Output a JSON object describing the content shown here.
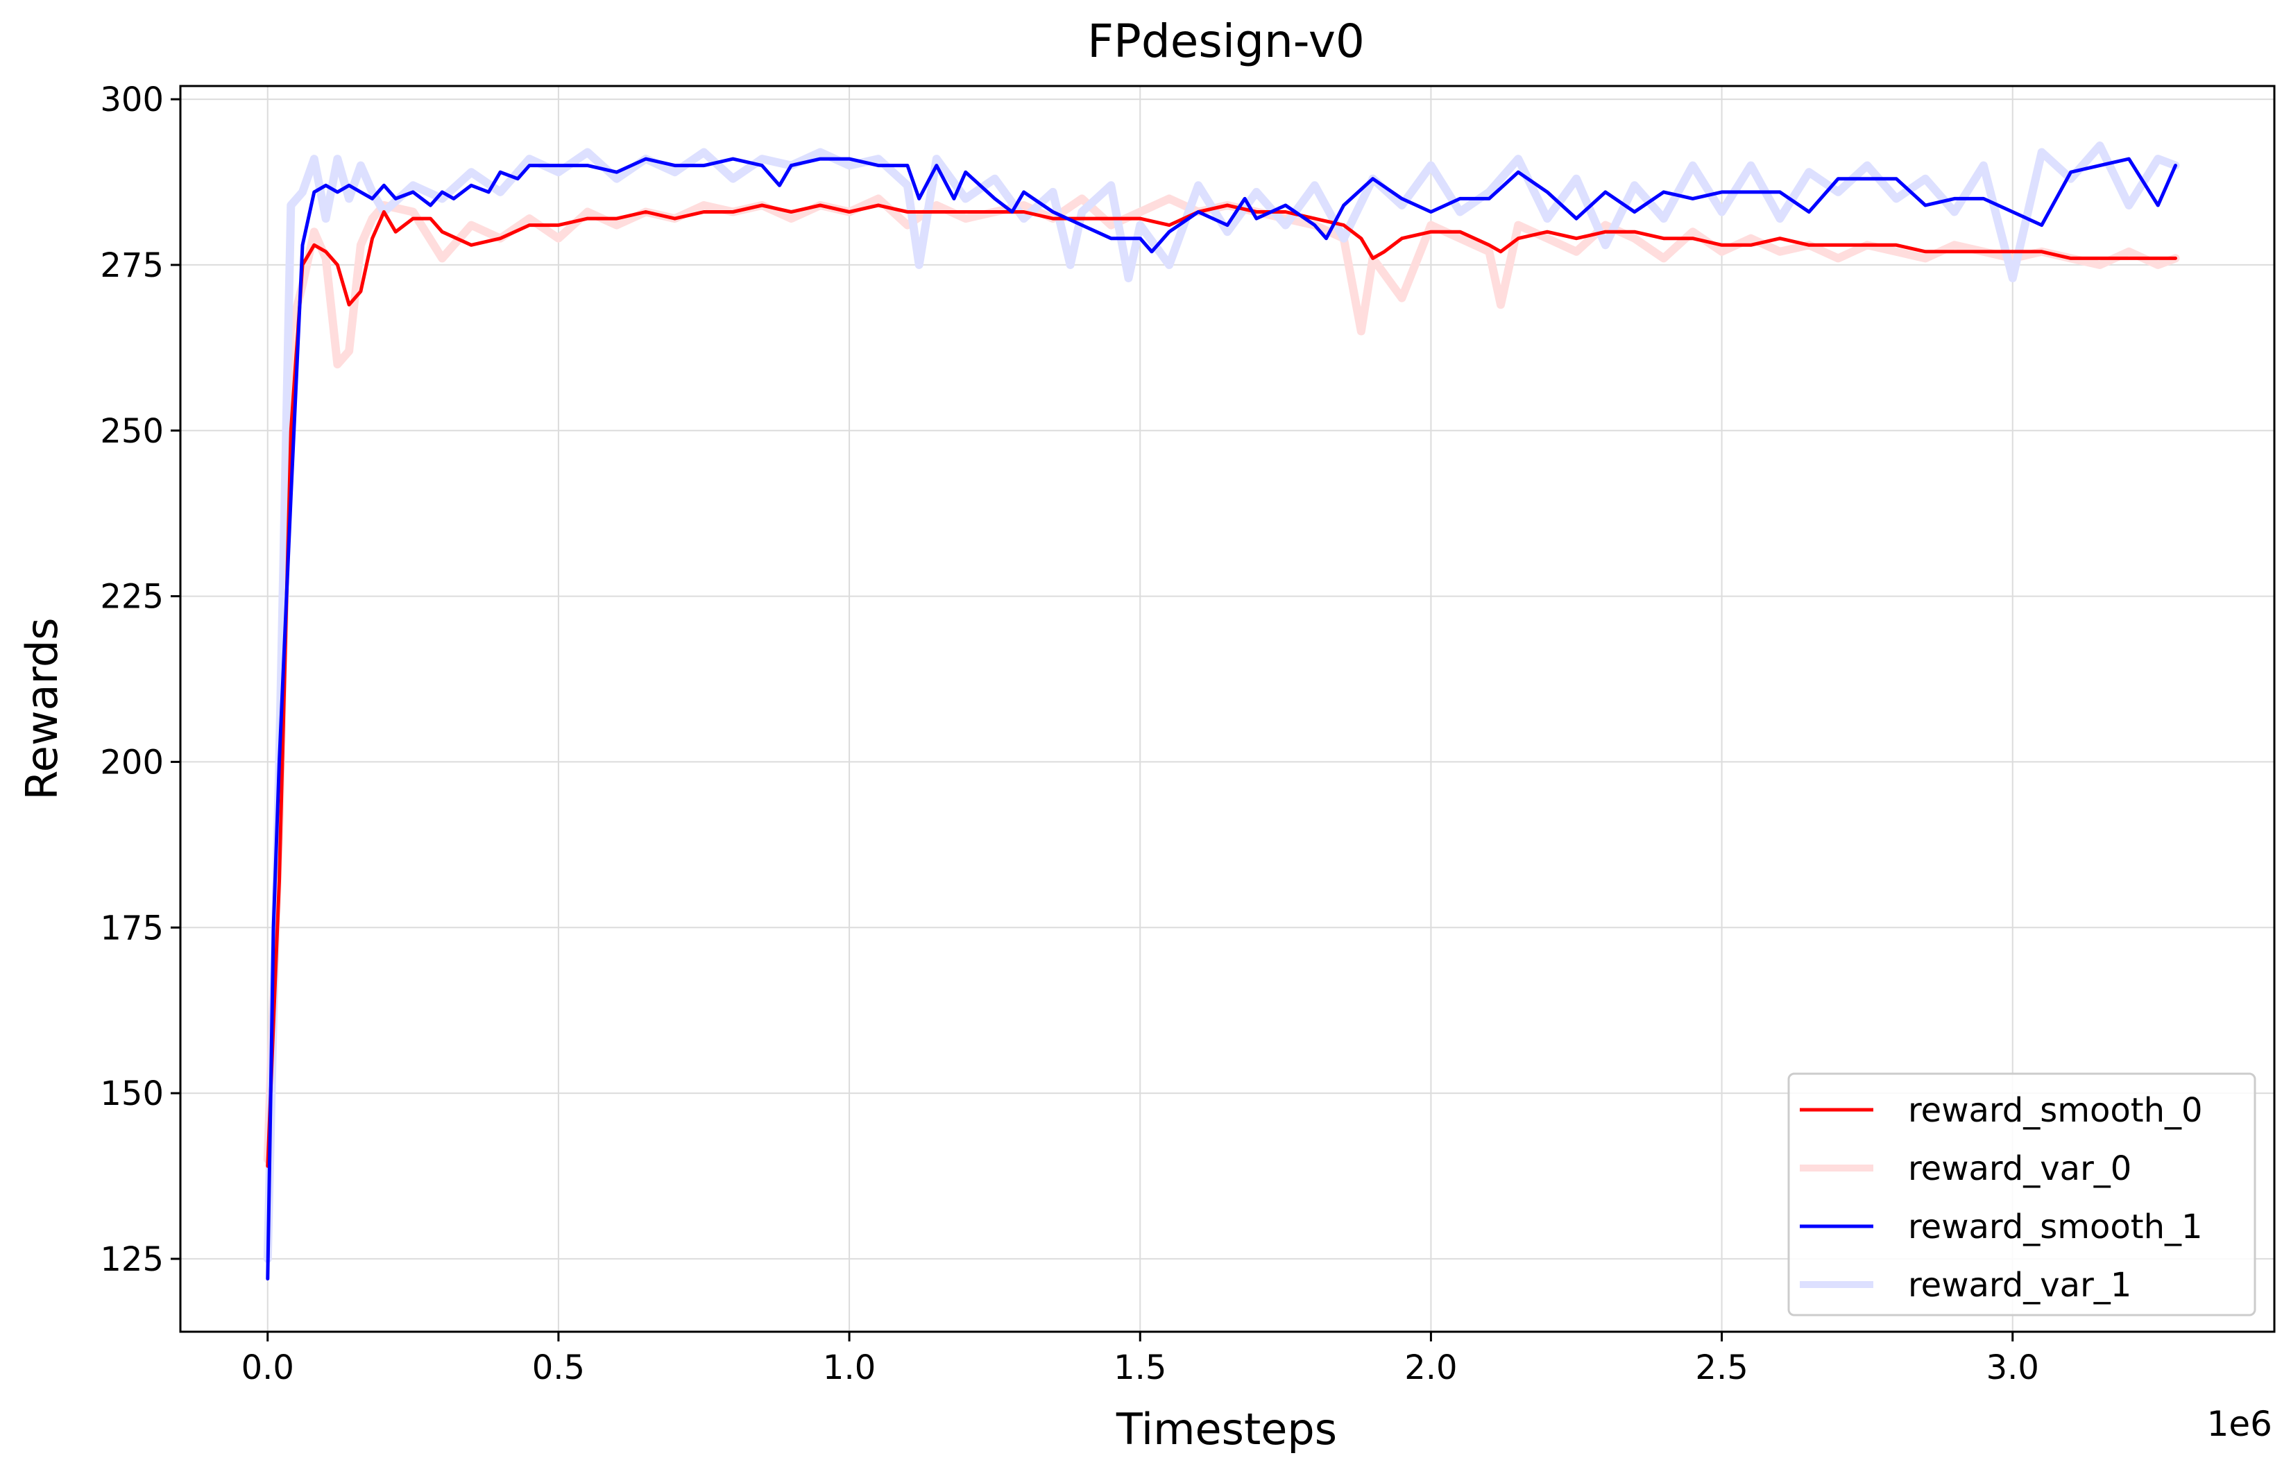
{
  "chart_data": {
    "type": "line",
    "title": "FPdesign-v0",
    "xlabel": "Timesteps",
    "ylabel": "Rewards",
    "x_offset_label": "1e6",
    "xlim": [
      -0.15,
      3.45
    ],
    "ylim": [
      114,
      302
    ],
    "x_ticks": [
      0.0,
      0.5,
      1.0,
      1.5,
      2.0,
      2.5,
      3.0
    ],
    "x_tick_labels": [
      "0.0",
      "0.5",
      "1.0",
      "1.5",
      "2.0",
      "2.5",
      "3.0"
    ],
    "y_ticks": [
      125,
      150,
      175,
      200,
      225,
      250,
      275,
      300
    ],
    "y_tick_labels": [
      "125",
      "150",
      "175",
      "200",
      "225",
      "250",
      "275",
      "300"
    ],
    "grid": true,
    "legend_position": "lower-right",
    "series": [
      {
        "name": "reward_var_0",
        "color": "#ffdddd",
        "style": "thick-faint",
        "x": [
          0.0,
          0.02,
          0.04,
          0.06,
          0.08,
          0.1,
          0.12,
          0.14,
          0.16,
          0.18,
          0.2,
          0.25,
          0.3,
          0.35,
          0.4,
          0.45,
          0.5,
          0.55,
          0.6,
          0.65,
          0.7,
          0.75,
          0.8,
          0.85,
          0.9,
          0.95,
          1.0,
          1.05,
          1.1,
          1.15,
          1.2,
          1.25,
          1.3,
          1.35,
          1.4,
          1.45,
          1.5,
          1.55,
          1.6,
          1.65,
          1.7,
          1.75,
          1.8,
          1.85,
          1.88,
          1.9,
          1.95,
          2.0,
          2.05,
          2.1,
          2.12,
          2.15,
          2.2,
          2.25,
          2.3,
          2.35,
          2.4,
          2.45,
          2.5,
          2.55,
          2.6,
          2.65,
          2.7,
          2.75,
          2.8,
          2.85,
          2.9,
          2.95,
          3.0,
          3.05,
          3.1,
          3.15,
          3.2,
          3.25,
          3.28
        ],
        "y": [
          140,
          190,
          265,
          272,
          280,
          276,
          260,
          262,
          278,
          282,
          284,
          283,
          276,
          281,
          279,
          282,
          279,
          283,
          281,
          283,
          282,
          284,
          283,
          284,
          282,
          284,
          283,
          285,
          281,
          284,
          282,
          283,
          284,
          282,
          285,
          281,
          283,
          285,
          283,
          284,
          283,
          282,
          281,
          279,
          265,
          276,
          270,
          281,
          279,
          277,
          269,
          281,
          279,
          277,
          281,
          279,
          276,
          280,
          277,
          279,
          277,
          278,
          276,
          278,
          277,
          276,
          278,
          277,
          276,
          277,
          276,
          275,
          277,
          275,
          276
        ]
      },
      {
        "name": "reward_var_1",
        "color": "#dde0ff",
        "style": "thick-faint",
        "x": [
          0.0,
          0.02,
          0.04,
          0.06,
          0.08,
          0.1,
          0.12,
          0.14,
          0.16,
          0.18,
          0.2,
          0.25,
          0.3,
          0.35,
          0.4,
          0.45,
          0.5,
          0.55,
          0.6,
          0.65,
          0.7,
          0.75,
          0.8,
          0.85,
          0.9,
          0.95,
          1.0,
          1.05,
          1.1,
          1.12,
          1.15,
          1.2,
          1.25,
          1.3,
          1.35,
          1.38,
          1.4,
          1.45,
          1.48,
          1.5,
          1.55,
          1.6,
          1.65,
          1.7,
          1.75,
          1.8,
          1.85,
          1.9,
          1.95,
          2.0,
          2.05,
          2.1,
          2.15,
          2.2,
          2.25,
          2.3,
          2.35,
          2.4,
          2.45,
          2.5,
          2.55,
          2.6,
          2.65,
          2.7,
          2.75,
          2.8,
          2.85,
          2.9,
          2.95,
          3.0,
          3.05,
          3.1,
          3.15,
          3.2,
          3.25,
          3.28
        ],
        "y": [
          125,
          200,
          284,
          286,
          291,
          282,
          291,
          285,
          290,
          286,
          283,
          287,
          285,
          289,
          286,
          291,
          289,
          292,
          288,
          291,
          289,
          292,
          288,
          291,
          290,
          292,
          290,
          291,
          287,
          275,
          291,
          285,
          288,
          282,
          286,
          275,
          283,
          287,
          273,
          281,
          275,
          287,
          280,
          286,
          281,
          287,
          279,
          288,
          284,
          290,
          283,
          286,
          291,
          282,
          288,
          278,
          287,
          282,
          290,
          283,
          290,
          282,
          289,
          286,
          290,
          285,
          288,
          283,
          290,
          273,
          292,
          288,
          293,
          284,
          291,
          290
        ]
      },
      {
        "name": "reward_smooth_0",
        "color": "#ff0000",
        "style": "solid",
        "x": [
          0.0,
          0.02,
          0.04,
          0.06,
          0.08,
          0.1,
          0.12,
          0.14,
          0.16,
          0.18,
          0.2,
          0.22,
          0.25,
          0.28,
          0.3,
          0.35,
          0.4,
          0.45,
          0.5,
          0.55,
          0.6,
          0.65,
          0.7,
          0.75,
          0.8,
          0.85,
          0.9,
          0.95,
          1.0,
          1.05,
          1.1,
          1.15,
          1.2,
          1.25,
          1.3,
          1.35,
          1.4,
          1.45,
          1.5,
          1.55,
          1.6,
          1.65,
          1.7,
          1.75,
          1.8,
          1.85,
          1.88,
          1.9,
          1.92,
          1.95,
          2.0,
          2.05,
          2.1,
          2.12,
          2.15,
          2.2,
          2.25,
          2.3,
          2.35,
          2.4,
          2.45,
          2.5,
          2.55,
          2.6,
          2.65,
          2.7,
          2.75,
          2.8,
          2.85,
          2.9,
          2.95,
          3.0,
          3.05,
          3.1,
          3.15,
          3.2,
          3.25,
          3.28
        ],
        "y": [
          139,
          182,
          250,
          275,
          278,
          277,
          275,
          269,
          271,
          279,
          283,
          280,
          282,
          282,
          280,
          278,
          279,
          281,
          281,
          282,
          282,
          283,
          282,
          283,
          283,
          284,
          283,
          284,
          283,
          284,
          283,
          283,
          283,
          283,
          283,
          282,
          282,
          282,
          282,
          281,
          283,
          284,
          283,
          283,
          282,
          281,
          279,
          276,
          277,
          279,
          280,
          280,
          278,
          277,
          279,
          280,
          279,
          280,
          280,
          279,
          279,
          278,
          278,
          279,
          278,
          278,
          278,
          278,
          277,
          277,
          277,
          277,
          277,
          276,
          276,
          276,
          276,
          276
        ]
      },
      {
        "name": "reward_smooth_1",
        "color": "#0000ff",
        "style": "solid",
        "x": [
          0.0,
          0.01,
          0.02,
          0.04,
          0.06,
          0.08,
          0.1,
          0.12,
          0.14,
          0.16,
          0.18,
          0.2,
          0.22,
          0.25,
          0.28,
          0.3,
          0.32,
          0.35,
          0.38,
          0.4,
          0.43,
          0.45,
          0.5,
          0.55,
          0.6,
          0.65,
          0.7,
          0.75,
          0.8,
          0.85,
          0.88,
          0.9,
          0.95,
          1.0,
          1.05,
          1.1,
          1.12,
          1.15,
          1.18,
          1.2,
          1.25,
          1.28,
          1.3,
          1.35,
          1.4,
          1.45,
          1.5,
          1.52,
          1.55,
          1.6,
          1.65,
          1.68,
          1.7,
          1.75,
          1.8,
          1.82,
          1.85,
          1.9,
          1.95,
          2.0,
          2.05,
          2.1,
          2.15,
          2.2,
          2.25,
          2.3,
          2.35,
          2.4,
          2.45,
          2.5,
          2.55,
          2.6,
          2.65,
          2.7,
          2.75,
          2.8,
          2.85,
          2.9,
          2.95,
          3.0,
          3.05,
          3.1,
          3.15,
          3.2,
          3.25,
          3.28
        ],
        "y": [
          122,
          175,
          200,
          240,
          278,
          286,
          287,
          286,
          287,
          286,
          285,
          287,
          285,
          286,
          284,
          286,
          285,
          287,
          286,
          289,
          288,
          290,
          290,
          290,
          289,
          291,
          290,
          290,
          291,
          290,
          287,
          290,
          291,
          291,
          290,
          290,
          285,
          290,
          285,
          289,
          285,
          283,
          286,
          283,
          281,
          279,
          279,
          277,
          280,
          283,
          281,
          285,
          282,
          284,
          281,
          279,
          284,
          288,
          285,
          283,
          285,
          285,
          289,
          286,
          282,
          286,
          283,
          286,
          285,
          286,
          286,
          286,
          283,
          288,
          288,
          288,
          284,
          285,
          285,
          283,
          281,
          289,
          290,
          291,
          284,
          290
        ]
      }
    ],
    "legend": [
      {
        "label": "reward_smooth_0",
        "color": "#ff0000",
        "faint": false
      },
      {
        "label": "reward_var_0",
        "color": "#ffdddd",
        "faint": true
      },
      {
        "label": "reward_smooth_1",
        "color": "#0000ff",
        "faint": false
      },
      {
        "label": "reward_var_1",
        "color": "#dde0ff",
        "faint": true
      }
    ]
  }
}
